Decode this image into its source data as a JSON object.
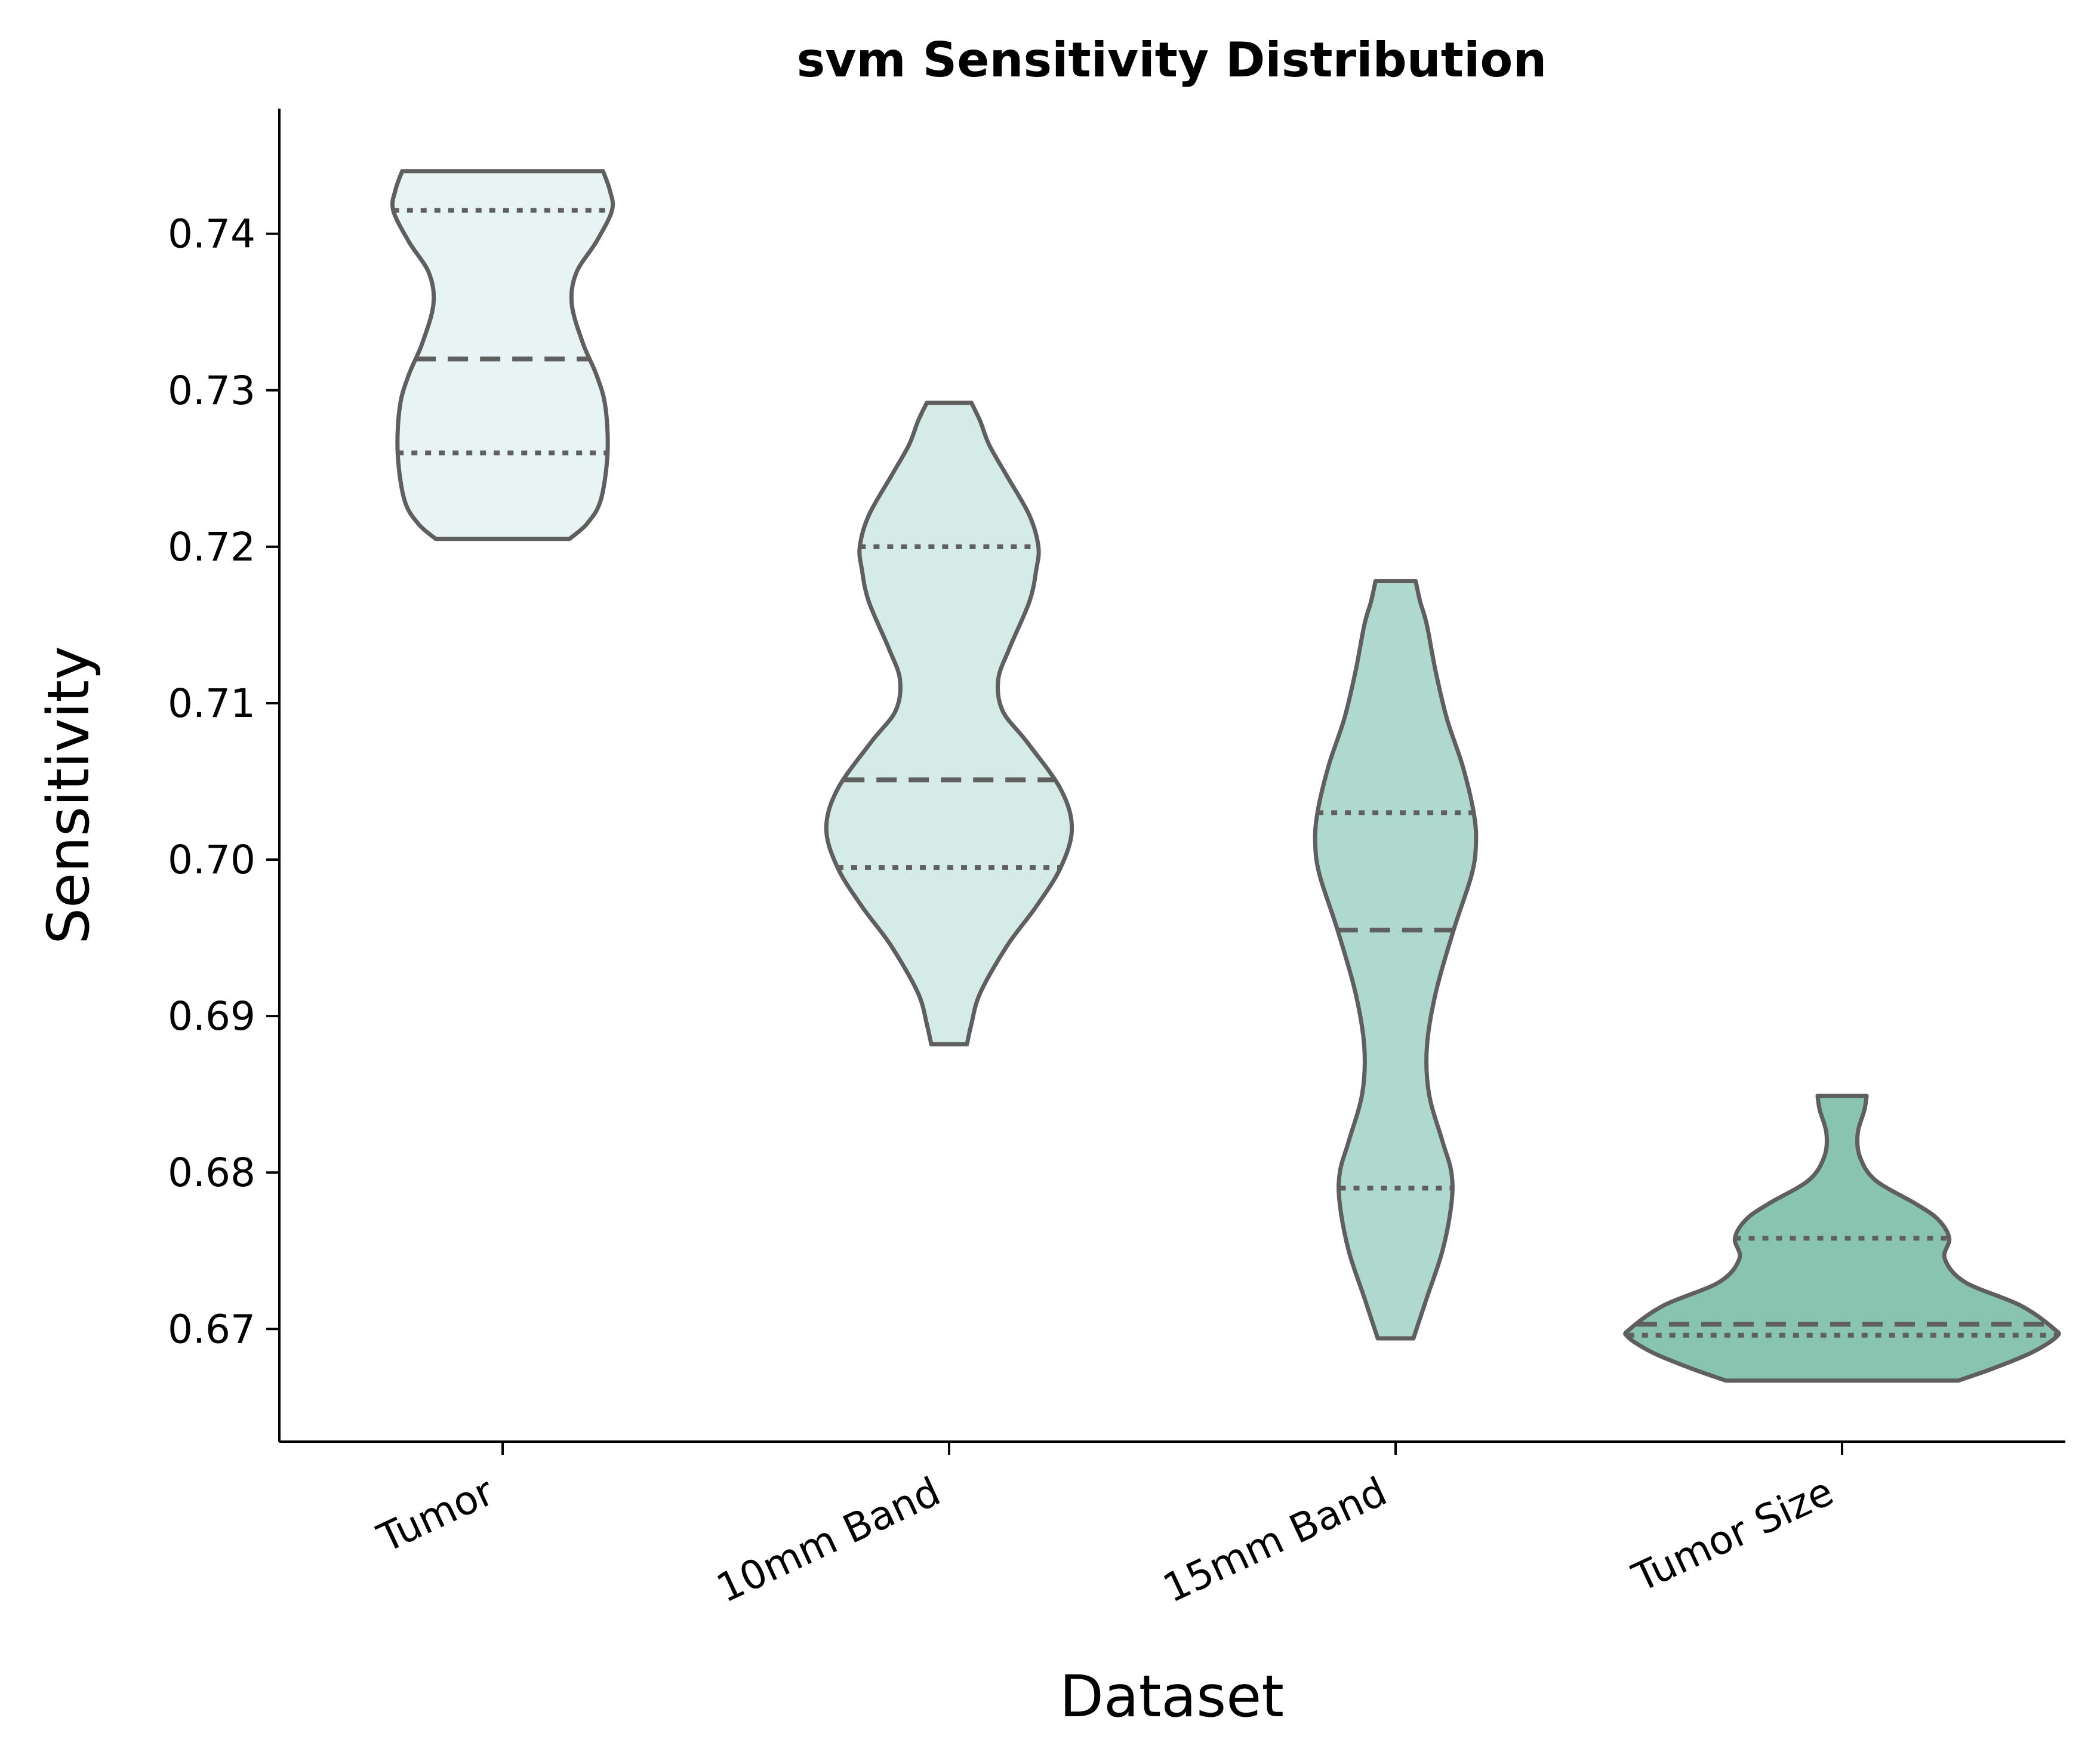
{
  "chart_data": {
    "type": "violin",
    "title": "svm Sensitivity Distribution",
    "xlabel": "Dataset",
    "ylabel": "Sensitivity",
    "ylim": [
      0.6628,
      0.748
    ],
    "yticks": [
      "0.67",
      "0.68",
      "0.69",
      "0.70",
      "0.71",
      "0.72",
      "0.73",
      "0.74"
    ],
    "grid": false,
    "legend": "none",
    "categories": [
      "Tumor",
      "10mm Band",
      "15mm Band",
      "Tumor Size"
    ],
    "colors": [
      "#e8f4f4",
      "#d5ebe7",
      "#afd9cf",
      "#89c4b0"
    ],
    "outline_color": "#5f5f5f",
    "violins": [
      {
        "category": "Tumor",
        "min": 0.7205,
        "max": 0.744,
        "q1": 0.726,
        "median": 0.732,
        "q3": 0.7415,
        "profile": [
          [
            0.7205,
            0.3
          ],
          [
            0.7215,
            0.38
          ],
          [
            0.723,
            0.44
          ],
          [
            0.726,
            0.47
          ],
          [
            0.729,
            0.46
          ],
          [
            0.731,
            0.42
          ],
          [
            0.733,
            0.36
          ],
          [
            0.7355,
            0.31
          ],
          [
            0.7375,
            0.33
          ],
          [
            0.7395,
            0.42
          ],
          [
            0.7415,
            0.49
          ],
          [
            0.7428,
            0.48
          ],
          [
            0.744,
            0.45
          ]
        ]
      },
      {
        "category": "10mm Band",
        "min": 0.6882,
        "max": 0.7292,
        "q1": 0.6995,
        "median": 0.7051,
        "q3": 0.72,
        "profile": [
          [
            0.6882,
            0.08
          ],
          [
            0.6895,
            0.1
          ],
          [
            0.6915,
            0.14
          ],
          [
            0.6945,
            0.26
          ],
          [
            0.697,
            0.39
          ],
          [
            0.6995,
            0.5
          ],
          [
            0.702,
            0.55
          ],
          [
            0.7045,
            0.5
          ],
          [
            0.7075,
            0.35
          ],
          [
            0.7095,
            0.24
          ],
          [
            0.7115,
            0.22
          ],
          [
            0.7135,
            0.27
          ],
          [
            0.7165,
            0.36
          ],
          [
            0.7185,
            0.39
          ],
          [
            0.72,
            0.4
          ],
          [
            0.722,
            0.36
          ],
          [
            0.7245,
            0.26
          ],
          [
            0.7265,
            0.18
          ],
          [
            0.728,
            0.14
          ],
          [
            0.7292,
            0.1
          ]
        ]
      },
      {
        "category": "15mm Band",
        "min": 0.6694,
        "max": 0.7178,
        "q1": 0.679,
        "median": 0.6955,
        "q3": 0.703,
        "profile": [
          [
            0.6694,
            0.08
          ],
          [
            0.672,
            0.14
          ],
          [
            0.675,
            0.21
          ],
          [
            0.678,
            0.25
          ],
          [
            0.68,
            0.25
          ],
          [
            0.682,
            0.21
          ],
          [
            0.685,
            0.15
          ],
          [
            0.688,
            0.14
          ],
          [
            0.6915,
            0.18
          ],
          [
            0.6955,
            0.26
          ],
          [
            0.699,
            0.34
          ],
          [
            0.701,
            0.36
          ],
          [
            0.703,
            0.35
          ],
          [
            0.706,
            0.3
          ],
          [
            0.709,
            0.23
          ],
          [
            0.712,
            0.18
          ],
          [
            0.715,
            0.14
          ],
          [
            0.7165,
            0.11
          ],
          [
            0.7178,
            0.09
          ]
        ]
      },
      {
        "category": "Tumor Size",
        "min": 0.6667,
        "max": 0.6849,
        "q1": 0.6696,
        "median": 0.6703,
        "q3": 0.6758,
        "profile": [
          [
            0.6667,
            0.52
          ],
          [
            0.6675,
            0.68
          ],
          [
            0.6685,
            0.85
          ],
          [
            0.6695,
            0.96
          ],
          [
            0.67,
            0.95
          ],
          [
            0.6715,
            0.8
          ],
          [
            0.673,
            0.55
          ],
          [
            0.6745,
            0.46
          ],
          [
            0.6758,
            0.48
          ],
          [
            0.677,
            0.43
          ],
          [
            0.678,
            0.33
          ],
          [
            0.6795,
            0.15
          ],
          [
            0.681,
            0.08
          ],
          [
            0.6825,
            0.07
          ],
          [
            0.684,
            0.1
          ],
          [
            0.6849,
            0.11
          ]
        ]
      }
    ]
  }
}
